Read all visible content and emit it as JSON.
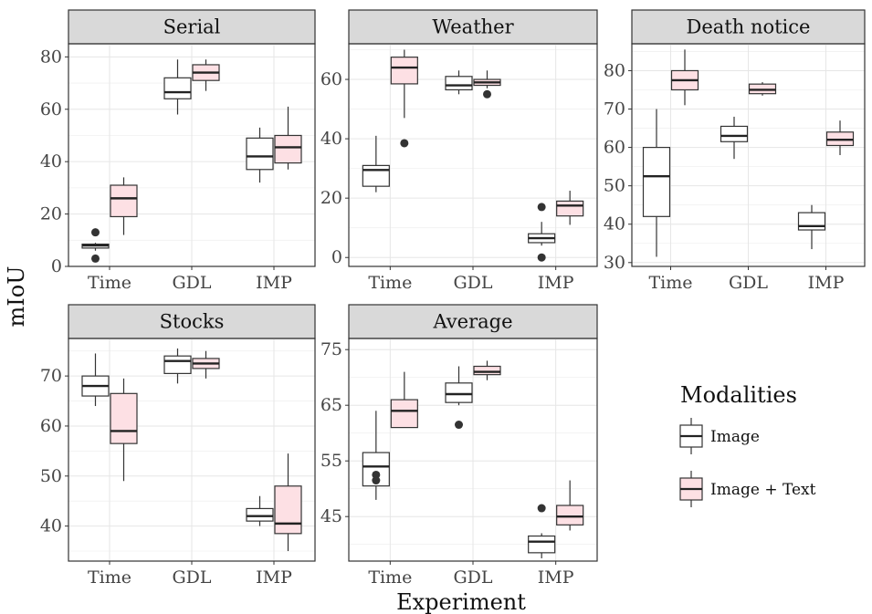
{
  "chart_data": {
    "type": "boxplot",
    "xlabel": "Experiment",
    "ylabel": "mIoU",
    "categories": [
      "Time",
      "GDL",
      "IMP"
    ],
    "legend": {
      "title": "Modalities",
      "position": "right",
      "entries": [
        {
          "name": "Image",
          "color": "#ffffff"
        },
        {
          "name": "Image + Text",
          "color": "#fde0e4"
        }
      ]
    },
    "grid": true,
    "panels": [
      {
        "title": "Serial",
        "ylim": [
          0,
          85
        ],
        "yticks": [
          0,
          20,
          40,
          60,
          80
        ],
        "boxes": {
          "Image": [
            {
              "category": "Time",
              "low": 6,
              "q1": 7,
              "median": 8,
              "q3": 8.5,
              "high": 9,
              "outliers": [
                3,
                13
              ]
            },
            {
              "category": "GDL",
              "low": 58,
              "q1": 64,
              "median": 66.5,
              "q3": 72,
              "high": 79,
              "outliers": []
            },
            {
              "category": "IMP",
              "low": 32,
              "q1": 37,
              "median": 42,
              "q3": 49,
              "high": 53,
              "outliers": []
            }
          ],
          "Image + Text": [
            {
              "category": "Time",
              "low": 12,
              "q1": 19,
              "median": 26,
              "q3": 31,
              "high": 34,
              "outliers": []
            },
            {
              "category": "GDL",
              "low": 67,
              "q1": 71,
              "median": 74,
              "q3": 77,
              "high": 79,
              "outliers": []
            },
            {
              "category": "IMP",
              "low": 37,
              "q1": 39.5,
              "median": 45.5,
              "q3": 50,
              "high": 61,
              "outliers": []
            }
          ]
        }
      },
      {
        "title": "Weather",
        "ylim": [
          -3,
          72
        ],
        "yticks": [
          0,
          20,
          40,
          60
        ],
        "boxes": {
          "Image": [
            {
              "category": "Time",
              "low": 22,
              "q1": 24,
              "median": 29.5,
              "q3": 31,
              "high": 41,
              "outliers": []
            },
            {
              "category": "GDL",
              "low": 55,
              "q1": 56.5,
              "median": 58,
              "q3": 61,
              "high": 63,
              "outliers": []
            },
            {
              "category": "IMP",
              "low": 4,
              "q1": 5,
              "median": 6.5,
              "q3": 8,
              "high": 12,
              "outliers": [
                0,
                17
              ]
            }
          ],
          "Image + Text": [
            {
              "category": "Time",
              "low": 47,
              "q1": 58.5,
              "median": 64,
              "q3": 67.5,
              "high": 70,
              "outliers": [
                38.5
              ]
            },
            {
              "category": "GDL",
              "low": 57,
              "q1": 58,
              "median": 59,
              "q3": 60,
              "high": 63,
              "outliers": [
                55
              ]
            },
            {
              "category": "IMP",
              "low": 11,
              "q1": 14,
              "median": 17.5,
              "q3": 19,
              "high": 22.5,
              "outliers": []
            }
          ]
        }
      },
      {
        "title": "Death notice",
        "ylim": [
          29,
          87
        ],
        "yticks": [
          30,
          40,
          50,
          60,
          70,
          80
        ],
        "boxes": {
          "Image": [
            {
              "category": "Time",
              "low": 31.5,
              "q1": 42,
              "median": 52.5,
              "q3": 60,
              "high": 70,
              "outliers": []
            },
            {
              "category": "GDL",
              "low": 57,
              "q1": 61.5,
              "median": 63,
              "q3": 65.5,
              "high": 68,
              "outliers": []
            },
            {
              "category": "IMP",
              "low": 33.5,
              "q1": 38.5,
              "median": 39.5,
              "q3": 43,
              "high": 45,
              "outliers": []
            }
          ],
          "Image + Text": [
            {
              "category": "Time",
              "low": 71,
              "q1": 75,
              "median": 77.5,
              "q3": 80,
              "high": 85.5,
              "outliers": []
            },
            {
              "category": "GDL",
              "low": 73.5,
              "q1": 74,
              "median": 75,
              "q3": 76.5,
              "high": 77,
              "outliers": []
            },
            {
              "category": "IMP",
              "low": 58,
              "q1": 60.5,
              "median": 62,
              "q3": 64,
              "high": 67,
              "outliers": []
            }
          ]
        }
      },
      {
        "title": "Stocks",
        "ylim": [
          33,
          77.5
        ],
        "yticks": [
          40,
          50,
          60,
          70
        ],
        "boxes": {
          "Image": [
            {
              "category": "Time",
              "low": 64,
              "q1": 66,
              "median": 68,
              "q3": 70,
              "high": 74.5,
              "outliers": []
            },
            {
              "category": "GDL",
              "low": 68.5,
              "q1": 70.5,
              "median": 73,
              "q3": 74,
              "high": 75.5,
              "outliers": []
            },
            {
              "category": "IMP",
              "low": 40,
              "q1": 41,
              "median": 42,
              "q3": 43.5,
              "high": 46,
              "outliers": []
            }
          ],
          "Image + Text": [
            {
              "category": "Time",
              "low": 49,
              "q1": 56.5,
              "median": 59,
              "q3": 66.5,
              "high": 69.5,
              "outliers": []
            },
            {
              "category": "GDL",
              "low": 69.5,
              "q1": 71.5,
              "median": 72.5,
              "q3": 73.5,
              "high": 75,
              "outliers": []
            },
            {
              "category": "IMP",
              "low": 35,
              "q1": 38.5,
              "median": 40.5,
              "q3": 48,
              "high": 54.5,
              "outliers": []
            }
          ]
        }
      },
      {
        "title": "Average",
        "ylim": [
          37,
          77
        ],
        "yticks": [
          45,
          55,
          65,
          75
        ],
        "boxes": {
          "Image": [
            {
              "category": "Time",
              "low": 48,
              "q1": 50.5,
              "median": 54,
              "q3": 56.5,
              "high": 64,
              "outliers": [
                52.5,
                51.5
              ]
            },
            {
              "category": "GDL",
              "low": 65,
              "q1": 65.5,
              "median": 67,
              "q3": 69,
              "high": 72,
              "outliers": [
                61.5
              ]
            },
            {
              "category": "IMP",
              "low": 37.5,
              "q1": 38.5,
              "median": 40.5,
              "q3": 41.5,
              "high": 42,
              "outliers": [
                46.5
              ]
            }
          ],
          "Image + Text": [
            {
              "category": "Time",
              "low": 61,
              "q1": 61,
              "median": 64,
              "q3": 66,
              "high": 71,
              "outliers": []
            },
            {
              "category": "GDL",
              "low": 69.5,
              "q1": 70.5,
              "median": 71,
              "q3": 72,
              "high": 73,
              "outliers": []
            },
            {
              "category": "IMP",
              "low": 42.5,
              "q1": 43.5,
              "median": 45,
              "q3": 47,
              "high": 51.5,
              "outliers": []
            }
          ]
        }
      }
    ]
  }
}
